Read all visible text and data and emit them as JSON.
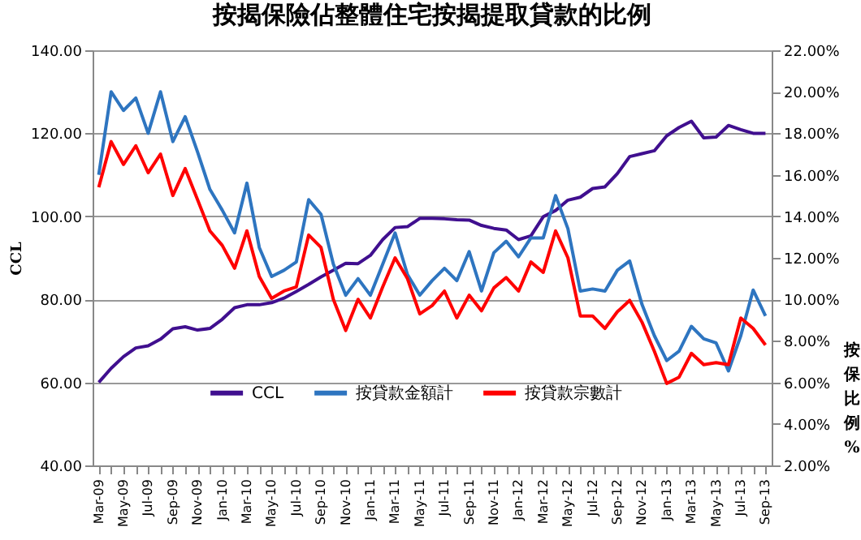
{
  "chart_data": {
    "type": "line",
    "title": "按揭保險佔整體住宅按揭提取貸款的比例",
    "ylabel": "CCL",
    "y2label": "按保比例%",
    "categories": [
      "Mar-09",
      null,
      "May-09",
      null,
      "Jul-09",
      null,
      "Sep-09",
      null,
      "Nov-09",
      null,
      "Jan-10",
      null,
      "Mar-10",
      null,
      "May-10",
      null,
      "Jul-10",
      null,
      "Sep-10",
      null,
      "Nov-10",
      null,
      "Jan-11",
      null,
      "Mar-11",
      null,
      "May-11",
      null,
      "Jul-11",
      null,
      "Sep-11",
      null,
      "Nov-11",
      null,
      "Jan-12",
      null,
      "Mar-12",
      null,
      "May-12",
      null,
      "Jul-12",
      null,
      "Sep-12",
      null,
      "Nov-12",
      null,
      "Jan-13",
      null,
      "Mar-13",
      null,
      "May-13",
      null,
      "Jul-13",
      null,
      "Sep-13"
    ],
    "series": [
      {
        "name": "CCL",
        "color": "#400f8f",
        "values": [
          60,
          63.4,
          66.2,
          68.3,
          68.8,
          70.4,
          72.9,
          73.4,
          72.6,
          73,
          75.2,
          78,
          78.7,
          78.7,
          79.2,
          80.3,
          81.9,
          83.6,
          85.4,
          87,
          88.7,
          88.6,
          90.6,
          94.4,
          97.3,
          97.5,
          99.5,
          99.5,
          99.4,
          99.2,
          99.1,
          97.8,
          97.1,
          96.7,
          94.4,
          95.3,
          99.9,
          101.4,
          103.9,
          104.6,
          106.7,
          107.1,
          110.3,
          114.4,
          115.1,
          115.8,
          119.4,
          121.4,
          122.9,
          118.9,
          119.1,
          121.9,
          120.9,
          120,
          120
        ]
      },
      {
        "name": "按貸款金額計",
        "color": "#2e75c0",
        "axis": "y2",
        "values": [
          16.0,
          20.0,
          19.1,
          19.7,
          18.0,
          20.0,
          17.6,
          18.8,
          17.1,
          15.3,
          14.3,
          13.2,
          15.6,
          12.5,
          11.1,
          11.4,
          11.8,
          14.8,
          14.1,
          11.7,
          10.2,
          11.0,
          10.2,
          11.7,
          13.2,
          11.2,
          10.2,
          10.9,
          11.5,
          10.9,
          12.3,
          10.4,
          12.25,
          12.8,
          12.05,
          12.96,
          12.96,
          15.0,
          13.4,
          10.4,
          10.5,
          10.4,
          11.4,
          11.85,
          9.75,
          8.25,
          7.05,
          7.5,
          8.7,
          8.1,
          7.9,
          6.55,
          8.25,
          10.45,
          9.2
        ]
      },
      {
        "name": "按貸款宗數計",
        "color": "#ff0000",
        "axis": "y2",
        "values": [
          15.4,
          17.6,
          16.5,
          17.4,
          16.1,
          17.0,
          15.0,
          16.3,
          14.8,
          13.3,
          12.6,
          11.5,
          13.3,
          11.1,
          10.05,
          10.4,
          10.6,
          13.1,
          12.5,
          10.0,
          8.5,
          10.0,
          9.1,
          10.6,
          12.0,
          11.0,
          9.3,
          9.7,
          10.4,
          9.1,
          10.2,
          9.45,
          10.55,
          11.05,
          10.4,
          11.8,
          11.3,
          13.3,
          12.0,
          9.2,
          9.2,
          8.6,
          9.4,
          9.95,
          8.9,
          7.5,
          5.95,
          6.25,
          7.4,
          6.85,
          6.95,
          6.85,
          9.1,
          8.6,
          7.8
        ]
      }
    ],
    "ylim": [
      40,
      140
    ],
    "yticks": [
      {
        "value": 40,
        "label": "40.00"
      },
      {
        "value": 60,
        "label": "60.00"
      },
      {
        "value": 80,
        "label": "80.00"
      },
      {
        "value": 100,
        "label": "100.00"
      },
      {
        "value": 120,
        "label": "120.00"
      },
      {
        "value": 140,
        "label": "140.00"
      }
    ],
    "y2lim": [
      2,
      22
    ],
    "y2ticks": [
      {
        "value": 2,
        "label": "2.00%"
      },
      {
        "value": 4,
        "label": "4.00%"
      },
      {
        "value": 6,
        "label": "6.00%"
      },
      {
        "value": 8,
        "label": "8.00%"
      },
      {
        "value": 10,
        "label": "10.00%"
      },
      {
        "value": 12,
        "label": "12.00%"
      },
      {
        "value": 14,
        "label": "14.00%"
      },
      {
        "value": 16,
        "label": "16.00%"
      },
      {
        "value": 18,
        "label": "18.00%"
      },
      {
        "value": 20,
        "label": "20.00%"
      },
      {
        "value": 22,
        "label": "22.00%"
      }
    ],
    "grid": "y",
    "legend": "bottom",
    "marker": "none",
    "line_style": "solid"
  }
}
